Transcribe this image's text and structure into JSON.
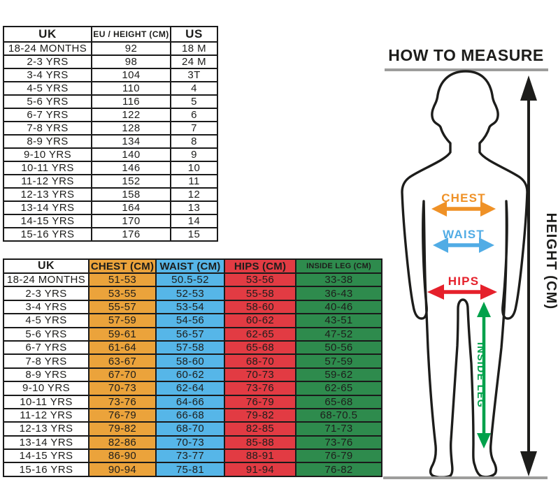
{
  "size_table": {
    "headers": [
      "UK",
      "EU / HEIGHT (CM)",
      "US"
    ],
    "rows": [
      [
        "18-24 MONTHS",
        "92",
        "18 M"
      ],
      [
        "2-3 YRS",
        "98",
        "24 M"
      ],
      [
        "3-4 YRS",
        "104",
        "3T"
      ],
      [
        "4-5 YRS",
        "110",
        "4"
      ],
      [
        "5-6 YRS",
        "116",
        "5"
      ],
      [
        "6-7 YRS",
        "122",
        "6"
      ],
      [
        "7-8 YRS",
        "128",
        "7"
      ],
      [
        "8-9 YRS",
        "134",
        "8"
      ],
      [
        "9-10 YRS",
        "140",
        "9"
      ],
      [
        "10-11 YRS",
        "146",
        "10"
      ],
      [
        "11-12 YRS",
        "152",
        "11"
      ],
      [
        "12-13 YRS",
        "158",
        "12"
      ],
      [
        "13-14 YRS",
        "164",
        "13"
      ],
      [
        "14-15 YRS",
        "170",
        "14"
      ],
      [
        "15-16 YRS",
        "176",
        "15"
      ]
    ]
  },
  "measurements_table": {
    "columns": [
      {
        "label": "UK",
        "bg": "#FFFFFF"
      },
      {
        "label": "CHEST (CM)",
        "bg": "#EBA33B"
      },
      {
        "label": "WAIST (CM)",
        "bg": "#56B6E8"
      },
      {
        "label": "HIPS (CM)",
        "bg": "#E23B43"
      },
      {
        "label": "INSIDE LEG (CM)",
        "bg": "#2E8B4D"
      }
    ],
    "rows": [
      [
        "18-24 MONTHS",
        "51-53",
        "50.5-52",
        "53-56",
        "33-38"
      ],
      [
        "2-3 YRS",
        "53-55",
        "52-53",
        "55-58",
        "36-43"
      ],
      [
        "3-4 YRS",
        "55-57",
        "53-54",
        "58-60",
        "40-46"
      ],
      [
        "4-5 YRS",
        "57-59",
        "54-56",
        "60-62",
        "43-51"
      ],
      [
        "5-6 YRS",
        "59-61",
        "56-57",
        "62-65",
        "47-52"
      ],
      [
        "6-7 YRS",
        "61-64",
        "57-58",
        "65-68",
        "50-56"
      ],
      [
        "7-8 YRS",
        "63-67",
        "58-60",
        "68-70",
        "57-59"
      ],
      [
        "8-9 YRS",
        "67-70",
        "60-62",
        "70-73",
        "59-62"
      ],
      [
        "9-10 YRS",
        "70-73",
        "62-64",
        "73-76",
        "62-65"
      ],
      [
        "10-11 YRS",
        "73-76",
        "64-66",
        "76-79",
        "65-68"
      ],
      [
        "11-12 YRS",
        "76-79",
        "66-68",
        "79-82",
        "68-70.5"
      ],
      [
        "12-13 YRS",
        "79-82",
        "68-70",
        "82-85",
        "71-73"
      ],
      [
        "13-14 YRS",
        "82-86",
        "70-73",
        "85-88",
        "73-76"
      ],
      [
        "14-15 YRS",
        "86-90",
        "73-77",
        "88-91",
        "76-79"
      ],
      [
        "15-16 YRS",
        "90-94",
        "75-81",
        "91-94",
        "76-82"
      ]
    ]
  },
  "diagram": {
    "title": "HOW TO MEASURE",
    "labels": {
      "chest": "CHEST",
      "waist": "WAIST",
      "hips": "HIPS",
      "inside_leg": "INSIDE LEG",
      "height": "HEIGHT (CM)"
    },
    "colors": {
      "chest": "#EF9126",
      "waist": "#51ACE5",
      "hips": "#E5202B",
      "inside_leg": "#00A14B",
      "height": "#1D1D1B",
      "outline": "#1D1D1B",
      "rule": "#9D9D9C"
    }
  }
}
